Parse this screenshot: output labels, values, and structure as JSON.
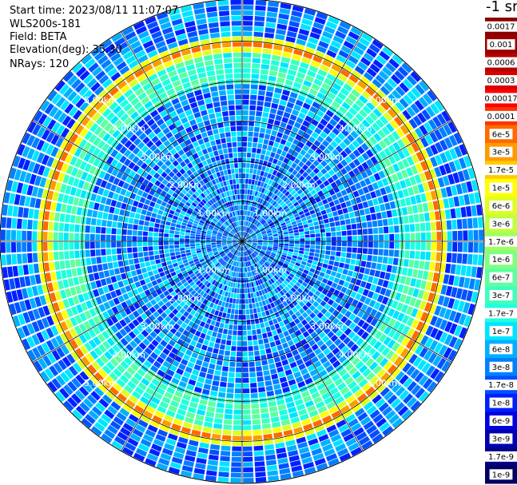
{
  "header": {
    "start_time": "Start time: 2023/08/11 11:07:07",
    "device": "WLS200s-181",
    "field": "Field: BETA",
    "elevation": "Elevation(deg): 35.30",
    "nrays": "NRays: 120",
    "unit": "-1 sr"
  },
  "chart_data": {
    "type": "heatmap",
    "projection": "polar-ppi",
    "rings_km": [
      1.0,
      2.0,
      3.0,
      4.0,
      5.0
    ],
    "ring_label": "km",
    "max_range_km": 6.05,
    "nrays": 120,
    "spoke_step_deg": 30,
    "high_beta_ring_km": 4.93,
    "colorbar": [
      {
        "label": "0.0017",
        "color": "#8b0000"
      },
      {
        "label": "0.001",
        "color": "#9b0000"
      },
      {
        "label": "0.0006",
        "color": "#b70000"
      },
      {
        "label": "0.0003",
        "color": "#d80000"
      },
      {
        "label": "0.00017",
        "color": "#ff0000"
      },
      {
        "label": "0.0001",
        "color": "#ff3300"
      },
      {
        "label": "6e-5",
        "color": "#ff6a00"
      },
      {
        "label": "3e-5",
        "color": "#ff9a00"
      },
      {
        "label": "1.7e-5",
        "color": "#ffcc00"
      },
      {
        "label": "1e-5",
        "color": "#ffff00"
      },
      {
        "label": "6e-6",
        "color": "#dfff1f"
      },
      {
        "label": "3e-6",
        "color": "#bfff3f"
      },
      {
        "label": "1.7e-6",
        "color": "#9fff5f"
      },
      {
        "label": "1e-6",
        "color": "#7fff7f"
      },
      {
        "label": "6e-7",
        "color": "#5fff9f"
      },
      {
        "label": "3e-7",
        "color": "#3fffbf"
      },
      {
        "label": "1.7e-7",
        "color": "#1fffdf"
      },
      {
        "label": "1e-7",
        "color": "#00e5ff"
      },
      {
        "label": "6e-8",
        "color": "#00b0ff"
      },
      {
        "label": "3e-8",
        "color": "#0080ff"
      },
      {
        "label": "1.7e-8",
        "color": "#0050ff"
      },
      {
        "label": "1e-8",
        "color": "#0020ff"
      },
      {
        "label": "6e-9",
        "color": "#0000e0"
      },
      {
        "label": "3e-9",
        "color": "#0000b0"
      },
      {
        "label": "1.7e-9",
        "color": "#000088"
      },
      {
        "label": "1e-9",
        "color": "#000060"
      }
    ]
  }
}
